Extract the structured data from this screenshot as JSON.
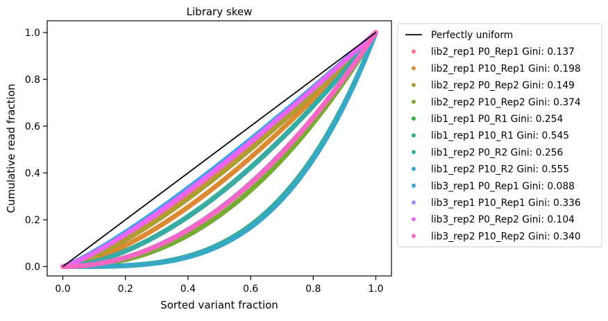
{
  "chart_data": {
    "type": "line",
    "title": "Library skew",
    "xlabel": "Sorted variant fraction",
    "ylabel": "Cumulative read fraction",
    "xlim": [
      -0.05,
      1.05
    ],
    "ylim": [
      -0.04,
      1.05
    ],
    "xticks": [
      "0.0",
      "0.2",
      "0.4",
      "0.6",
      "0.8",
      "1.0"
    ],
    "yticks": [
      "0.0",
      "0.2",
      "0.4",
      "0.6",
      "0.8",
      "1.0"
    ],
    "grid": false,
    "legend_position": "outside-right",
    "reference_line": {
      "name": "Perfectly uniform",
      "color": "#000000",
      "x": [
        0,
        1
      ],
      "y": [
        0,
        1
      ]
    },
    "series": [
      {
        "name": "lib2_rep1 P0_Rep1 Gini: 0.137",
        "color": "#f77189",
        "gini": 0.137
      },
      {
        "name": "lib2_rep1 P10_Rep1 Gini: 0.198",
        "color": "#dc8932",
        "gini": 0.198
      },
      {
        "name": "lib2_rep2 P0_Rep2 Gini: 0.149",
        "color": "#ae9d31",
        "gini": 0.149
      },
      {
        "name": "lib2_rep2 P10_Rep2 Gini: 0.374",
        "color": "#77ab31",
        "gini": 0.374
      },
      {
        "name": "lib1_rep1 P0_R1 Gini: 0.254",
        "color": "#33b03d",
        "gini": 0.254
      },
      {
        "name": "lib1_rep1 P10_R1 Gini: 0.545",
        "color": "#36ad8e",
        "gini": 0.545
      },
      {
        "name": "lib1_rep2 P0_R2 Gini: 0.256",
        "color": "#37aba4",
        "gini": 0.256
      },
      {
        "name": "lib1_rep2 P10_R2 Gini: 0.555",
        "color": "#38a9c5",
        "gini": 0.555
      },
      {
        "name": "lib3_rep1 P0_Rep1 Gini: 0.088",
        "color": "#3ba3ec",
        "gini": 0.088
      },
      {
        "name": "lib3_rep1 P10_Rep1 Gini: 0.336",
        "color": "#9c8ef2",
        "gini": 0.336
      },
      {
        "name": "lib3_rep2 P0_Rep2 Gini: 0.104",
        "color": "#e866f4",
        "gini": 0.104
      },
      {
        "name": "lib3_rep2 P10_Rep2 Gini: 0.340",
        "color": "#f668c2",
        "gini": 0.34
      }
    ]
  }
}
